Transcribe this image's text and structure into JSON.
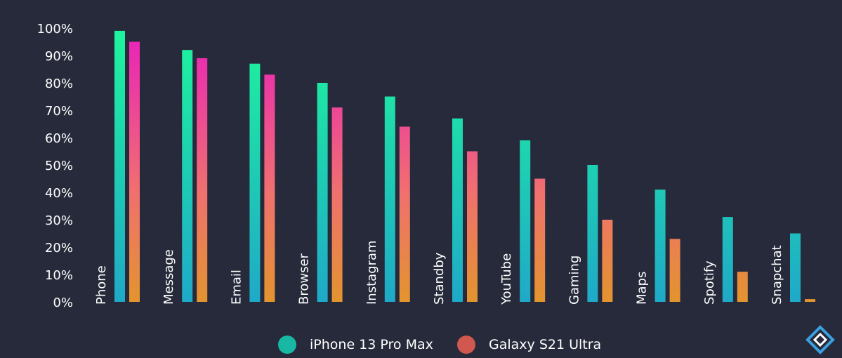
{
  "chart_data": {
    "type": "bar",
    "title": "",
    "xlabel": "",
    "ylabel": "",
    "ylim": [
      0,
      100
    ],
    "yticks": [
      "0%",
      "10%",
      "20%",
      "30%",
      "40%",
      "50%",
      "60%",
      "70%",
      "80%",
      "90%",
      "100%"
    ],
    "categories": [
      "Phone",
      "Message",
      "Email",
      "Browser",
      "Instagram",
      "Standby",
      "YouTube",
      "Gaming",
      "Maps",
      "Spotify",
      "Snapchat"
    ],
    "series": [
      {
        "name": "iPhone 13 Pro Max",
        "values": [
          99,
          92,
          87,
          80,
          75,
          67,
          59,
          50,
          41,
          31,
          25
        ]
      },
      {
        "name": "Galaxy S21 Ultra",
        "values": [
          95,
          89,
          83,
          71,
          64,
          55,
          45,
          30,
          23,
          11,
          1
        ]
      }
    ],
    "grid": false,
    "legend_position": "bottom-center"
  },
  "colors": {
    "background": "#262a3a",
    "series1_top": "#1ef59c",
    "series1_bottom": "#1fa9c8",
    "series2_top": "#ea1fbd",
    "series2_mid": "#f0706f",
    "series2_bottom": "#e3942f",
    "legend_series1": "#19b8a5",
    "legend_series2": "#d0584f"
  },
  "icons": {
    "logo": "diamond-logo-icon"
  }
}
